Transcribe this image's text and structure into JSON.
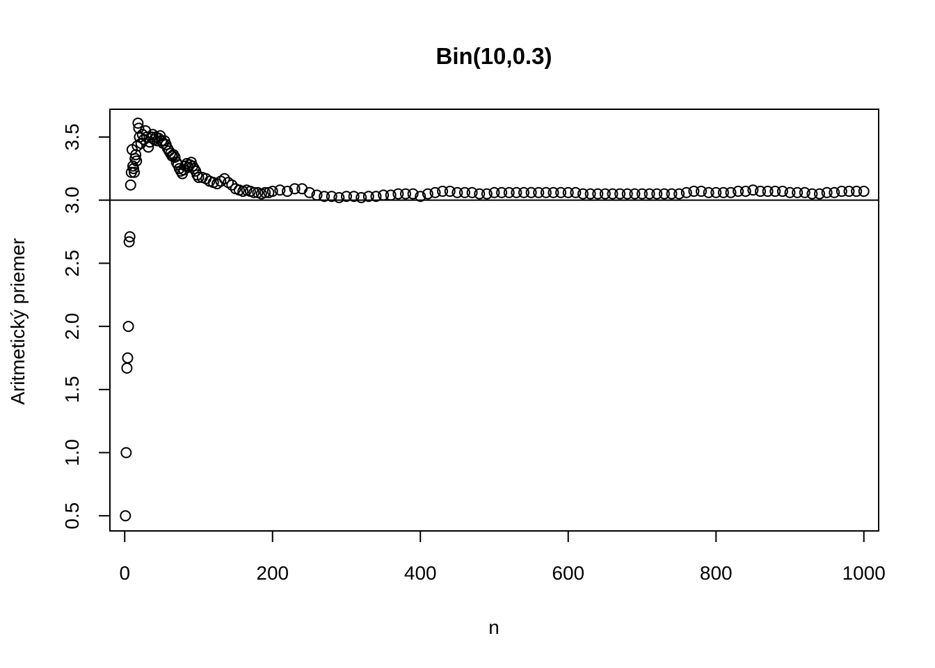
{
  "chart_data": {
    "type": "scatter",
    "title": "Bin(10,0.3)",
    "xlabel": "n",
    "ylabel": "Aritmetický priemer",
    "xlim": [
      -20,
      1020
    ],
    "ylim": [
      0.38,
      3.72
    ],
    "x_ticks": [
      0,
      200,
      400,
      600,
      800,
      1000
    ],
    "x_tick_labels": [
      "0",
      "200",
      "400",
      "600",
      "800",
      "1000"
    ],
    "y_ticks": [
      0.5,
      1.0,
      1.5,
      2.0,
      2.5,
      3.0,
      3.5
    ],
    "y_tick_labels": [
      "0.5",
      "1.0",
      "1.5",
      "2.0",
      "2.5",
      "3.0",
      "3.5"
    ],
    "reference_line": {
      "y": 3.0
    },
    "grid": false,
    "marker": "open-circle",
    "series": [
      {
        "x": [
          1,
          2,
          3,
          4,
          5,
          6,
          7,
          8,
          9,
          10,
          11,
          12,
          13,
          14,
          15,
          16,
          17,
          18,
          19,
          20,
          22,
          24,
          26,
          28,
          30,
          32,
          34,
          36,
          38,
          40,
          42,
          44,
          46,
          48,
          50,
          52,
          54,
          56,
          58,
          60,
          62,
          64,
          66,
          68,
          70,
          72,
          74,
          76,
          78,
          80,
          82,
          84,
          86,
          88,
          90,
          92,
          94,
          96,
          98,
          100,
          105,
          110,
          115,
          120,
          125,
          130,
          135,
          140,
          145,
          150,
          155,
          160,
          165,
          170,
          175,
          180,
          185,
          190,
          195,
          200,
          210,
          220,
          230,
          240,
          250,
          260,
          270,
          280,
          290,
          300,
          310,
          320,
          330,
          340,
          350,
          360,
          370,
          380,
          390,
          400,
          410,
          420,
          430,
          440,
          450,
          460,
          470,
          480,
          490,
          500,
          510,
          520,
          530,
          540,
          550,
          560,
          570,
          580,
          590,
          600,
          610,
          620,
          630,
          640,
          650,
          660,
          670,
          680,
          690,
          700,
          710,
          720,
          730,
          740,
          750,
          760,
          770,
          780,
          790,
          800,
          810,
          820,
          830,
          840,
          850,
          860,
          870,
          880,
          890,
          900,
          910,
          920,
          930,
          940,
          950,
          960,
          970,
          980,
          990,
          1000
        ],
        "y": [
          0.5,
          1.0,
          1.67,
          1.75,
          2.0,
          2.67,
          2.71,
          3.12,
          3.22,
          3.4,
          3.27,
          3.25,
          3.22,
          3.33,
          3.36,
          3.31,
          3.43,
          3.61,
          3.57,
          3.5,
          3.45,
          3.52,
          3.48,
          3.55,
          3.5,
          3.42,
          3.46,
          3.5,
          3.52,
          3.48,
          3.5,
          3.47,
          3.49,
          3.51,
          3.47,
          3.45,
          3.47,
          3.44,
          3.41,
          3.39,
          3.37,
          3.35,
          3.36,
          3.34,
          3.3,
          3.28,
          3.25,
          3.23,
          3.21,
          3.24,
          3.27,
          3.29,
          3.26,
          3.28,
          3.3,
          3.27,
          3.25,
          3.23,
          3.2,
          3.18,
          3.18,
          3.17,
          3.15,
          3.14,
          3.13,
          3.15,
          3.17,
          3.14,
          3.12,
          3.09,
          3.08,
          3.07,
          3.08,
          3.07,
          3.06,
          3.06,
          3.05,
          3.06,
          3.06,
          3.07,
          3.08,
          3.07,
          3.09,
          3.09,
          3.06,
          3.04,
          3.03,
          3.03,
          3.02,
          3.03,
          3.03,
          3.02,
          3.03,
          3.03,
          3.04,
          3.04,
          3.05,
          3.05,
          3.05,
          3.03,
          3.05,
          3.06,
          3.07,
          3.07,
          3.06,
          3.06,
          3.06,
          3.05,
          3.05,
          3.06,
          3.06,
          3.06,
          3.06,
          3.06,
          3.06,
          3.06,
          3.06,
          3.06,
          3.06,
          3.06,
          3.06,
          3.05,
          3.05,
          3.05,
          3.05,
          3.05,
          3.05,
          3.05,
          3.05,
          3.05,
          3.05,
          3.05,
          3.05,
          3.05,
          3.05,
          3.06,
          3.07,
          3.07,
          3.06,
          3.06,
          3.06,
          3.06,
          3.07,
          3.07,
          3.08,
          3.07,
          3.07,
          3.07,
          3.07,
          3.06,
          3.06,
          3.06,
          3.05,
          3.05,
          3.06,
          3.06,
          3.07,
          3.07,
          3.07,
          3.07
        ]
      }
    ]
  }
}
